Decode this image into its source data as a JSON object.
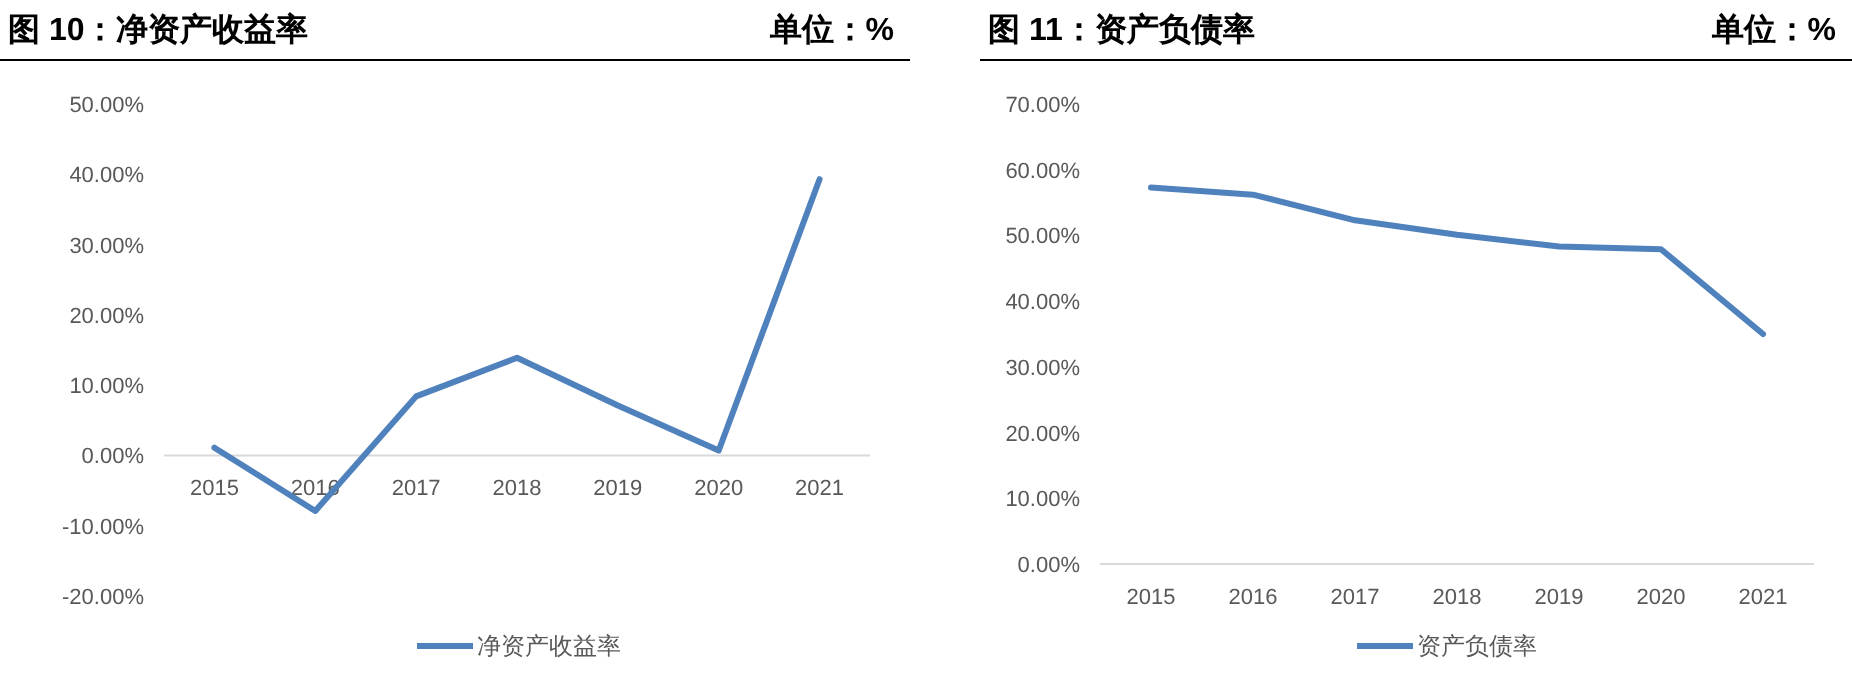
{
  "chart_data": [
    {
      "type": "line",
      "title": "图 10：净资产收益率",
      "annotations": [
        "单位：%"
      ],
      "categories": [
        "2015",
        "2016",
        "2017",
        "2018",
        "2019",
        "2020",
        "2021"
      ],
      "series": [
        {
          "name": "净资产收益率",
          "color": "#4f81bd",
          "values": [
            1.1,
            -7.9,
            8.4,
            13.9,
            7.1,
            0.7,
            39.3
          ]
        }
      ],
      "ylim": [
        -20,
        50
      ],
      "yticks": [
        {
          "value": -20,
          "label": "-20.00%"
        },
        {
          "value": -10,
          "label": "-10.00%"
        },
        {
          "value": 0,
          "label": "0.00%"
        },
        {
          "value": 10,
          "label": "10.00%"
        },
        {
          "value": 20,
          "label": "20.00%"
        },
        {
          "value": 30,
          "label": "30.00%"
        },
        {
          "value": 40,
          "label": "40.00%"
        },
        {
          "value": 50,
          "label": "50.00%"
        }
      ],
      "legend": "bottom"
    },
    {
      "type": "line",
      "title": "图 11：资产负债率",
      "annotations": [
        "单位：%"
      ],
      "categories": [
        "2015",
        "2016",
        "2017",
        "2018",
        "2019",
        "2020",
        "2021"
      ],
      "series": [
        {
          "name": "资产负债率",
          "color": "#4f81bd",
          "values": [
            57.3,
            56.2,
            52.3,
            50.1,
            48.3,
            47.9,
            35.0
          ]
        }
      ],
      "ylim": [
        0,
        70
      ],
      "yticks": [
        {
          "value": 0,
          "label": "0.00%"
        },
        {
          "value": 10,
          "label": "10.00%"
        },
        {
          "value": 20,
          "label": "20.00%"
        },
        {
          "value": 30,
          "label": "30.00%"
        },
        {
          "value": 40,
          "label": "40.00%"
        },
        {
          "value": 50,
          "label": "50.00%"
        },
        {
          "value": 60,
          "label": "60.00%"
        },
        {
          "value": 70,
          "label": "70.00%"
        }
      ],
      "legend": "bottom"
    }
  ]
}
